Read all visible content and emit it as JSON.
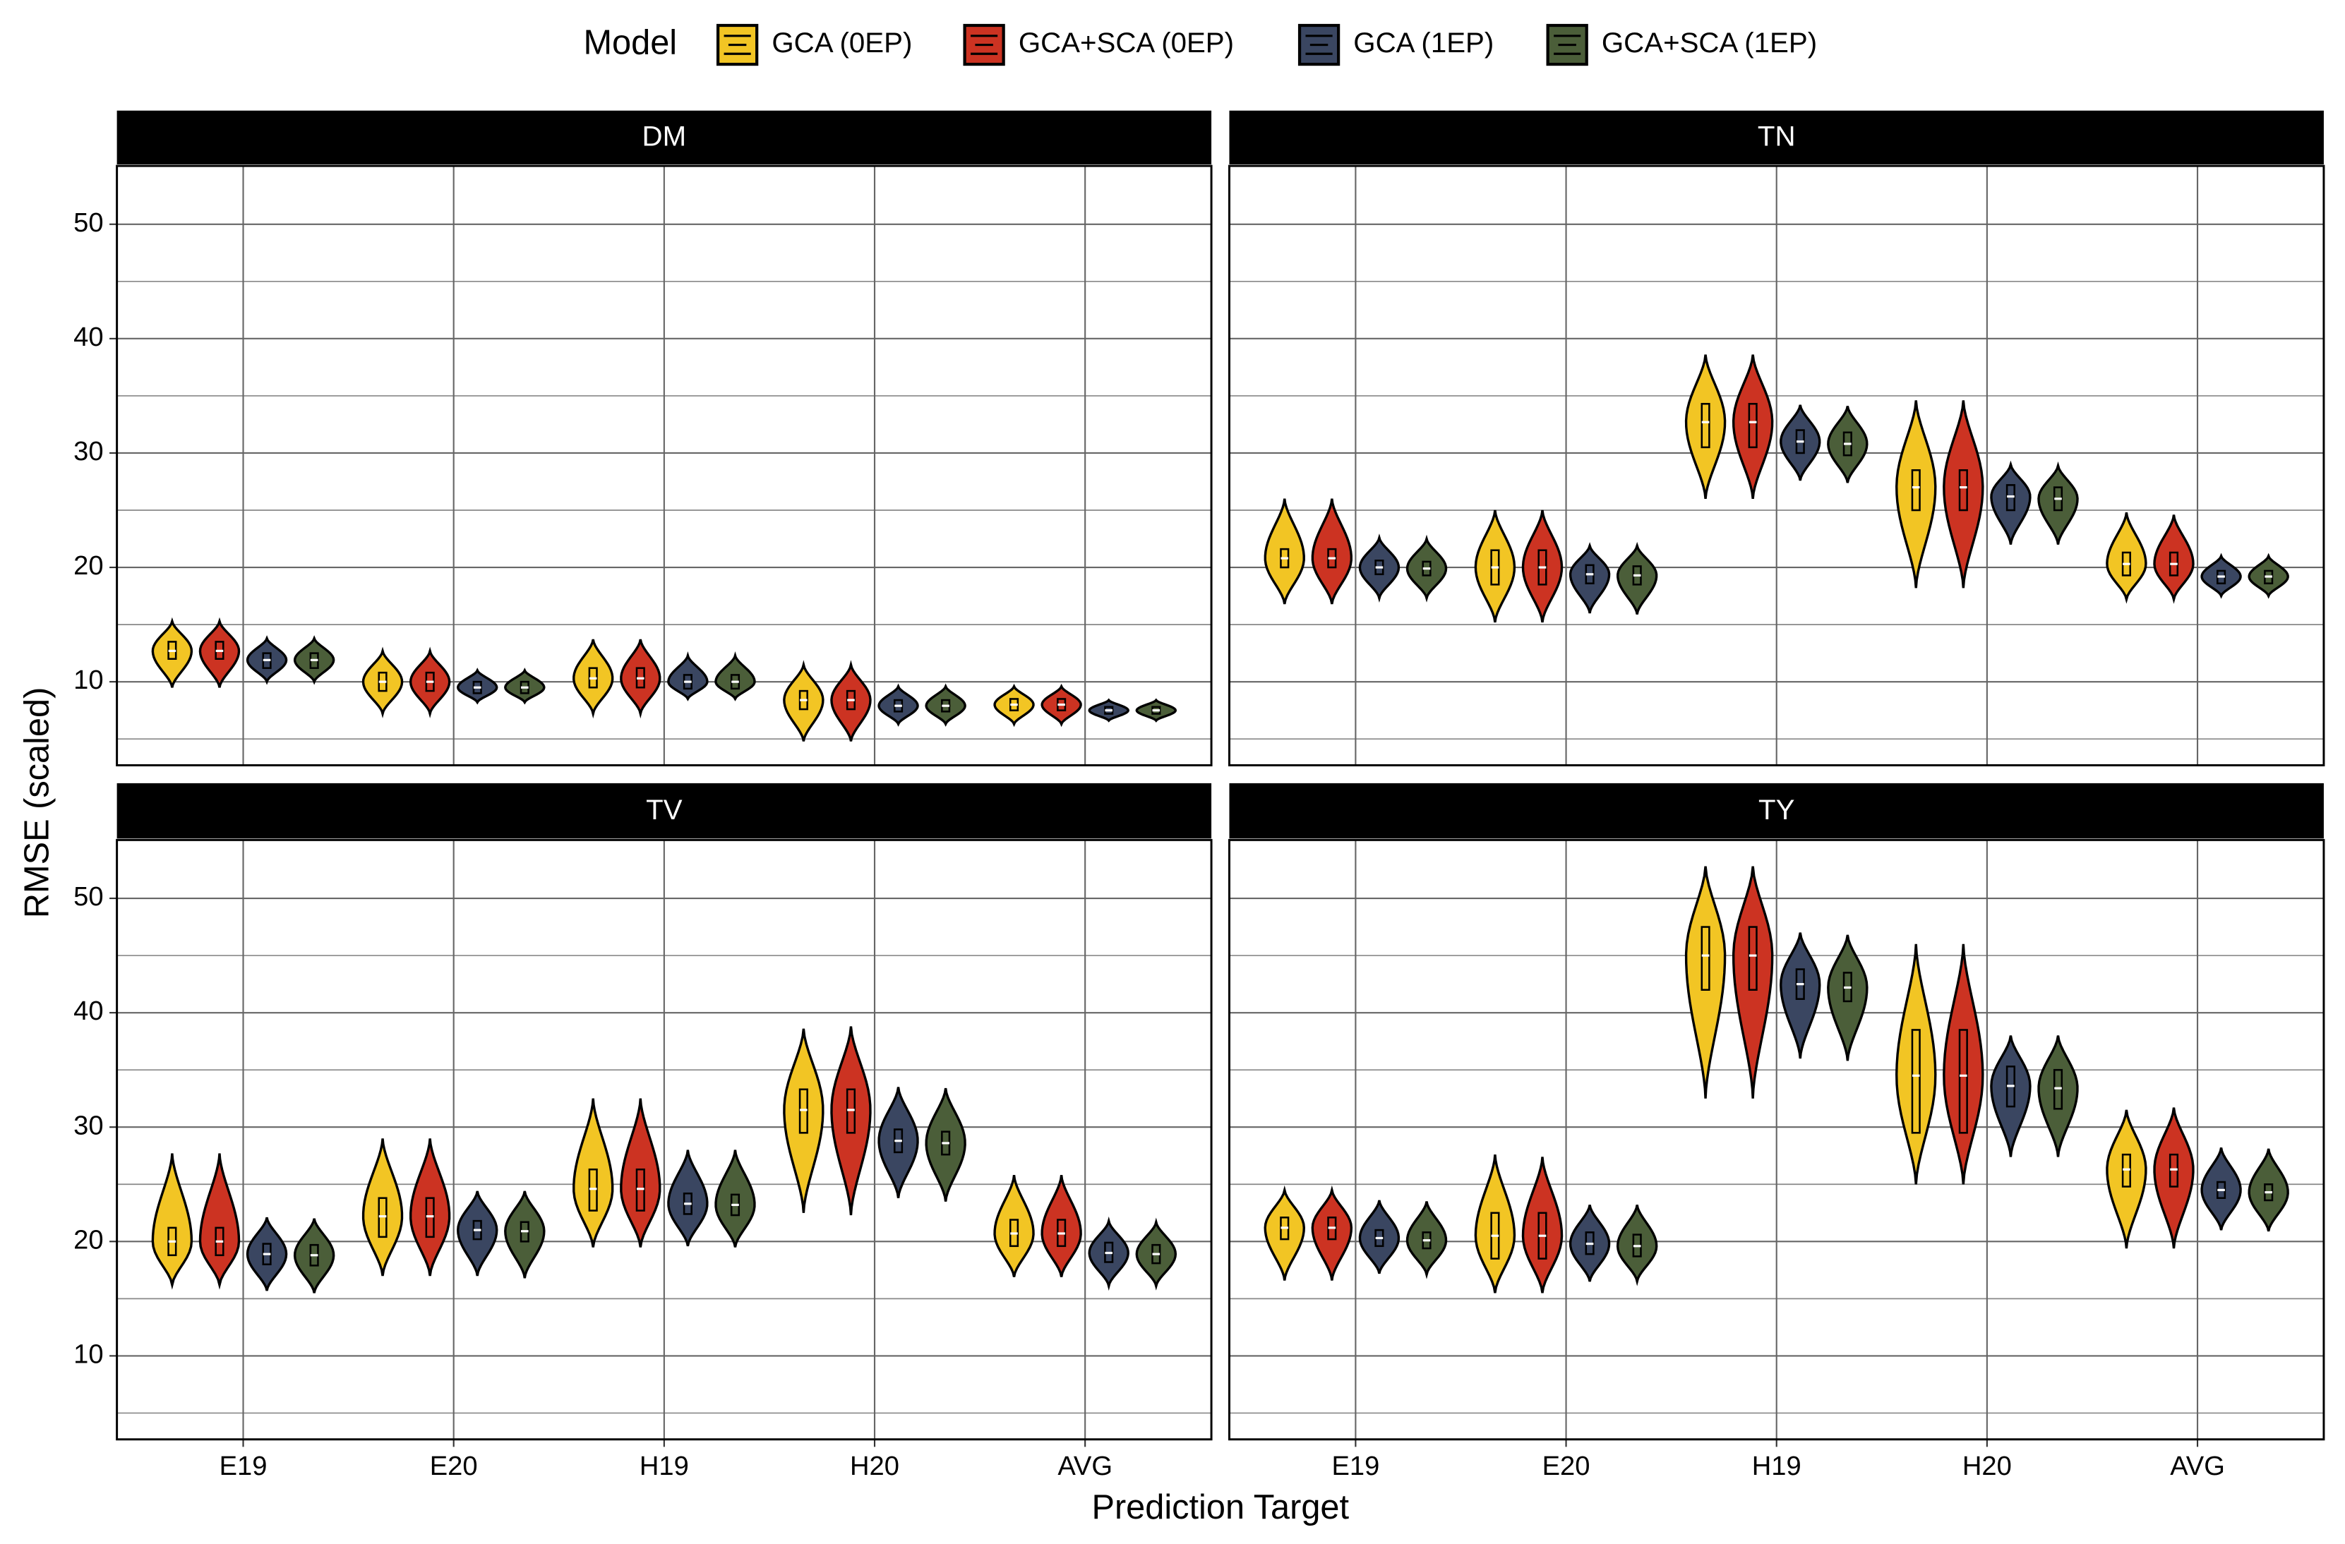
{
  "chart_data": {
    "type": "violin",
    "legend_title": "Model",
    "x_label": "Prediction Target",
    "y_label": "RMSE (scaled)",
    "categories": [
      "E19",
      "E20",
      "H19",
      "H20",
      "AVG"
    ],
    "series": [
      {
        "name": "GCA (0EP)",
        "color": "#f2c524"
      },
      {
        "name": "GCA+SCA (0EP)",
        "color": "#cc3322"
      },
      {
        "name": "GCA (1EP)",
        "color": "#3a4661"
      },
      {
        "name": "GCA+SCA (1EP)",
        "color": "#4b5e39"
      }
    ],
    "ylim": [
      2.7,
      55.1
    ],
    "yticks": [
      10,
      20,
      30,
      40,
      50
    ],
    "minor_yticks": [
      5,
      15,
      25,
      35,
      45
    ],
    "grid": true,
    "panels": [
      {
        "title": "DM",
        "series": [
          {
            "min": [
              9.5,
              7.2,
              7.2,
              4.8,
              6.3
            ],
            "q1": [
              12,
              9.2,
              9.5,
              7.6,
              7.5
            ],
            "median": [
              12.7,
              10,
              10.3,
              8.4,
              8
            ],
            "q3": [
              13.5,
              10.8,
              11.2,
              9.2,
              8.5
            ],
            "max": [
              15.3,
              12.7,
              13.7,
              11.5,
              9.6
            ]
          },
          {
            "min": [
              9.5,
              7.2,
              7.2,
              4.8,
              6.3
            ],
            "q1": [
              12,
              9.2,
              9.5,
              7.6,
              7.5
            ],
            "median": [
              12.7,
              10,
              10.3,
              8.4,
              8
            ],
            "q3": [
              13.5,
              10.8,
              11.2,
              9.2,
              8.5
            ],
            "max": [
              15.3,
              12.7,
              13.7,
              11.5,
              9.6
            ]
          },
          {
            "min": [
              10,
              8.2,
              8.5,
              6.3,
              6.6
            ],
            "q1": [
              11.2,
              9,
              9.4,
              7.4,
              7.2
            ],
            "median": [
              11.9,
              9.5,
              10,
              7.9,
              7.5
            ],
            "q3": [
              12.5,
              10,
              10.6,
              8.4,
              7.8
            ],
            "max": [
              13.8,
              11,
              12.3,
              9.6,
              8.4
            ]
          },
          {
            "min": [
              10,
              8.2,
              8.5,
              6.3,
              6.6
            ],
            "q1": [
              11.2,
              9,
              9.4,
              7.4,
              7.2
            ],
            "median": [
              11.9,
              9.5,
              10,
              7.9,
              7.5
            ],
            "q3": [
              12.5,
              10,
              10.6,
              8.4,
              7.8
            ],
            "max": [
              13.8,
              11,
              12.3,
              9.6,
              8.4
            ]
          }
        ]
      },
      {
        "title": "TN",
        "series": [
          {
            "min": [
              16.8,
              15.2,
              26,
              18.2,
              17.2
            ],
            "q1": [
              20,
              18.5,
              30.5,
              25,
              19.3
            ],
            "median": [
              20.8,
              20,
              32.7,
              27,
              20.3
            ],
            "q3": [
              21.6,
              21.5,
              34.3,
              28.5,
              21.3
            ],
            "max": [
              26,
              25,
              38.6,
              34.6,
              24.8
            ]
          },
          {
            "min": [
              16.8,
              15.2,
              26,
              18.2,
              17.2
            ],
            "q1": [
              20,
              18.5,
              30.5,
              25,
              19.3
            ],
            "median": [
              20.8,
              20,
              32.7,
              27,
              20.3
            ],
            "q3": [
              21.6,
              21.5,
              34.3,
              28.5,
              21.3
            ],
            "max": [
              26,
              25,
              38.6,
              34.6,
              24.6
            ]
          },
          {
            "min": [
              17.3,
              16,
              27.6,
              22,
              17.5
            ],
            "q1": [
              19.4,
              18.6,
              30,
              25,
              18.6
            ],
            "median": [
              20,
              19.4,
              31,
              26.2,
              19.2
            ],
            "q3": [
              20.6,
              20.2,
              32,
              27.2,
              19.7
            ],
            "max": [
              22.6,
              21.9,
              34.2,
              29,
              21
            ]
          },
          {
            "min": [
              17.3,
              15.9,
              27.4,
              22,
              17.5
            ],
            "q1": [
              19.3,
              18.5,
              29.8,
              25,
              18.6
            ],
            "median": [
              19.9,
              19.3,
              30.8,
              26,
              19.2
            ],
            "q3": [
              20.5,
              20.1,
              31.8,
              27,
              19.7
            ],
            "max": [
              22.5,
              21.9,
              34.1,
              28.9,
              21
            ]
          }
        ]
      },
      {
        "title": "TV",
        "series": [
          {
            "min": [
              16.2,
              17,
              19.5,
              22.5,
              16.9
            ],
            "q1": [
              18.8,
              20.4,
              22.7,
              29.5,
              19.6
            ],
            "median": [
              20,
              22.2,
              24.6,
              31.5,
              20.7
            ],
            "q3": [
              21.2,
              23.8,
              26.3,
              33.3,
              21.9
            ],
            "max": [
              27.7,
              29,
              32.5,
              38.6,
              25.8
            ]
          },
          {
            "min": [
              16.2,
              17,
              19.5,
              22.3,
              16.9
            ],
            "q1": [
              18.8,
              20.4,
              22.7,
              29.5,
              19.6
            ],
            "median": [
              20,
              22.2,
              24.6,
              31.5,
              20.7
            ],
            "q3": [
              21.2,
              23.8,
              26.3,
              33.3,
              21.9
            ],
            "max": [
              27.7,
              29,
              32.5,
              38.8,
              25.8
            ]
          },
          {
            "min": [
              15.7,
              17,
              19.6,
              23.8,
              16.1
            ],
            "q1": [
              18,
              20.2,
              22.4,
              27.8,
              18.2
            ],
            "median": [
              18.9,
              21,
              23.3,
              28.8,
              19
            ],
            "q3": [
              19.8,
              21.8,
              24.2,
              29.8,
              19.9
            ],
            "max": [
              22.1,
              24.4,
              28,
              33.5,
              21.8
            ]
          },
          {
            "min": [
              15.5,
              16.8,
              19.5,
              23.5,
              16.1
            ],
            "q1": [
              17.9,
              20,
              22.3,
              27.6,
              18.1
            ],
            "median": [
              18.8,
              20.9,
              23.2,
              28.6,
              18.9
            ],
            "q3": [
              19.7,
              21.7,
              24.1,
              29.6,
              19.7
            ],
            "max": [
              22,
              24.4,
              28,
              33.4,
              21.7
            ]
          }
        ]
      },
      {
        "title": "TY",
        "series": [
          {
            "min": [
              16.6,
              15.5,
              32.5,
              25,
              19.4
            ],
            "q1": [
              20.2,
              18.5,
              42,
              29.5,
              24.8
            ],
            "median": [
              21.2,
              20.5,
              45,
              34.5,
              26.3
            ],
            "q3": [
              22.1,
              22.5,
              47.5,
              38.5,
              27.6
            ],
            "max": [
              24.5,
              27.6,
              52.8,
              46,
              31.5
            ]
          },
          {
            "min": [
              16.6,
              15.5,
              32.5,
              25,
              19.4
            ],
            "q1": [
              20.2,
              18.5,
              42,
              29.5,
              24.8
            ],
            "median": [
              21.2,
              20.5,
              45,
              34.5,
              26.3
            ],
            "q3": [
              22.1,
              22.5,
              47.5,
              38.5,
              27.6
            ],
            "max": [
              24.5,
              27.4,
              52.8,
              46,
              31.7
            ]
          },
          {
            "min": [
              17.2,
              16.5,
              36,
              27.4,
              21
            ],
            "q1": [
              19.6,
              18.9,
              41.2,
              31.8,
              23.8
            ],
            "median": [
              20.3,
              19.8,
              42.5,
              33.6,
              24.5
            ],
            "q3": [
              21,
              20.8,
              43.8,
              35.3,
              25.2
            ],
            "max": [
              23.6,
              23.2,
              47,
              38,
              28.2
            ]
          },
          {
            "min": [
              17.1,
              16.5,
              35.8,
              27.4,
              20.9
            ],
            "q1": [
              19.4,
              18.7,
              41,
              31.6,
              23.6
            ],
            "median": [
              20.1,
              19.6,
              42.2,
              33.4,
              24.3
            ],
            "q3": [
              20.8,
              20.6,
              43.5,
              35,
              25
            ],
            "max": [
              23.5,
              23.2,
              46.8,
              38,
              28.1
            ]
          }
        ]
      }
    ]
  }
}
